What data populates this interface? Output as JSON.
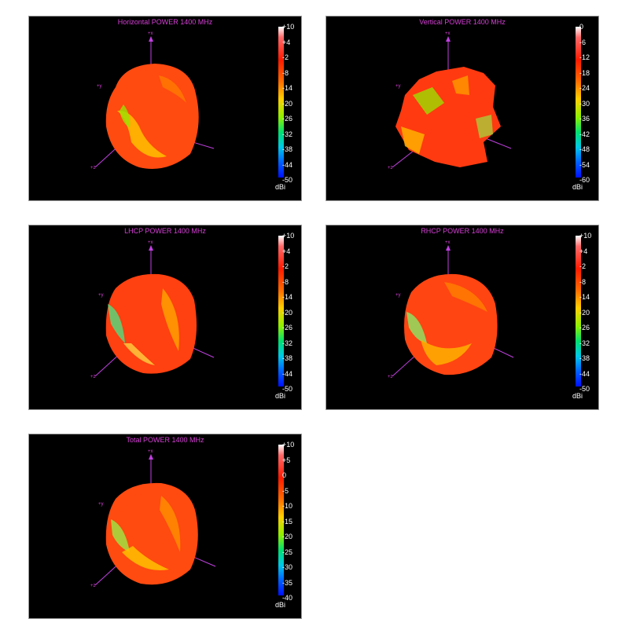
{
  "panels": [
    {
      "title": "Horizontal POWER 1400  MHz",
      "ticks": [
        "+10",
        "+4",
        "-2",
        "-8",
        "-14",
        "-20",
        "-26",
        "-32",
        "-38",
        "-44",
        "-50"
      ],
      "unit": "dBi"
    },
    {
      "title": "Vertical POWER 1400  MHz",
      "ticks": [
        "0",
        "-6",
        "-12",
        "-18",
        "-24",
        "-30",
        "-36",
        "-42",
        "-48",
        "-54",
        "-60"
      ],
      "unit": "dBi"
    },
    {
      "title": "LHCP POWER 1400  MHz",
      "ticks": [
        "+10",
        "+4",
        "-2",
        "-8",
        "-14",
        "-20",
        "-26",
        "-32",
        "-38",
        "-44",
        "-50"
      ],
      "unit": "dBi"
    },
    {
      "title": "RHCP POWER 1400  MHz",
      "ticks": [
        "+10",
        "+4",
        "-2",
        "-8",
        "-14",
        "-20",
        "-26",
        "-32",
        "-38",
        "-44",
        "-50"
      ],
      "unit": "dBi"
    },
    {
      "title": "Total POWER 1400  MHz",
      "ticks": [
        "+10",
        "+5",
        "0",
        "-5",
        "-10",
        "-15",
        "-20",
        "-25",
        "-30",
        "-35",
        "-40"
      ],
      "unit": "dBi"
    }
  ],
  "axes": {
    "x": "+x",
    "y": "+y",
    "z": "+z"
  },
  "colors": {
    "title": "#d63fd6",
    "axis": "#c040e0",
    "pattern_main": "#ff3a10",
    "pattern_hot": "#ffb000"
  }
}
